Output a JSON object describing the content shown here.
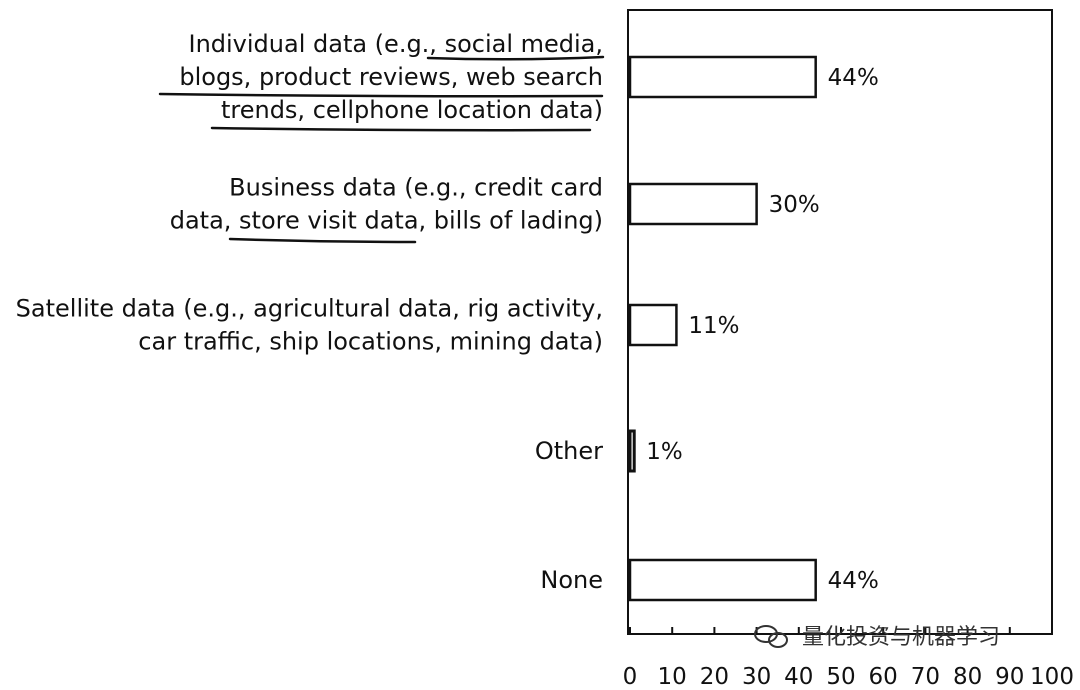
{
  "chart_data": {
    "type": "bar",
    "orientation": "horizontal",
    "categories": [
      [
        "Individual data (e.g., social media,",
        "blogs, product reviews, web search",
        "trends, cellphone location data)"
      ],
      [
        "Business data (e.g., credit card",
        "data, store visit data, bills of lading)"
      ],
      [
        "Satellite data (e.g., agricultural data, rig  activity,",
        "car traffic, ship locations, mining data)"
      ],
      [
        "Other"
      ],
      [
        "None"
      ]
    ],
    "values": [
      44,
      30,
      11,
      1,
      44
    ],
    "value_labels": [
      "44%",
      "30%",
      "11%",
      "1%",
      "44%"
    ],
    "xlim": [
      0,
      100
    ],
    "xticks": [
      0,
      10,
      20,
      30,
      40,
      50,
      60,
      70,
      80,
      90,
      100
    ],
    "title": "",
    "xlabel": "",
    "ylabel": "",
    "grid": false,
    "colors": {
      "bar_fill": "#ffffff",
      "bar_stroke": "#111111",
      "frame": "#111111"
    }
  },
  "watermark": {
    "icon": "wechat-icon",
    "text": "量化投资与机器学习"
  }
}
